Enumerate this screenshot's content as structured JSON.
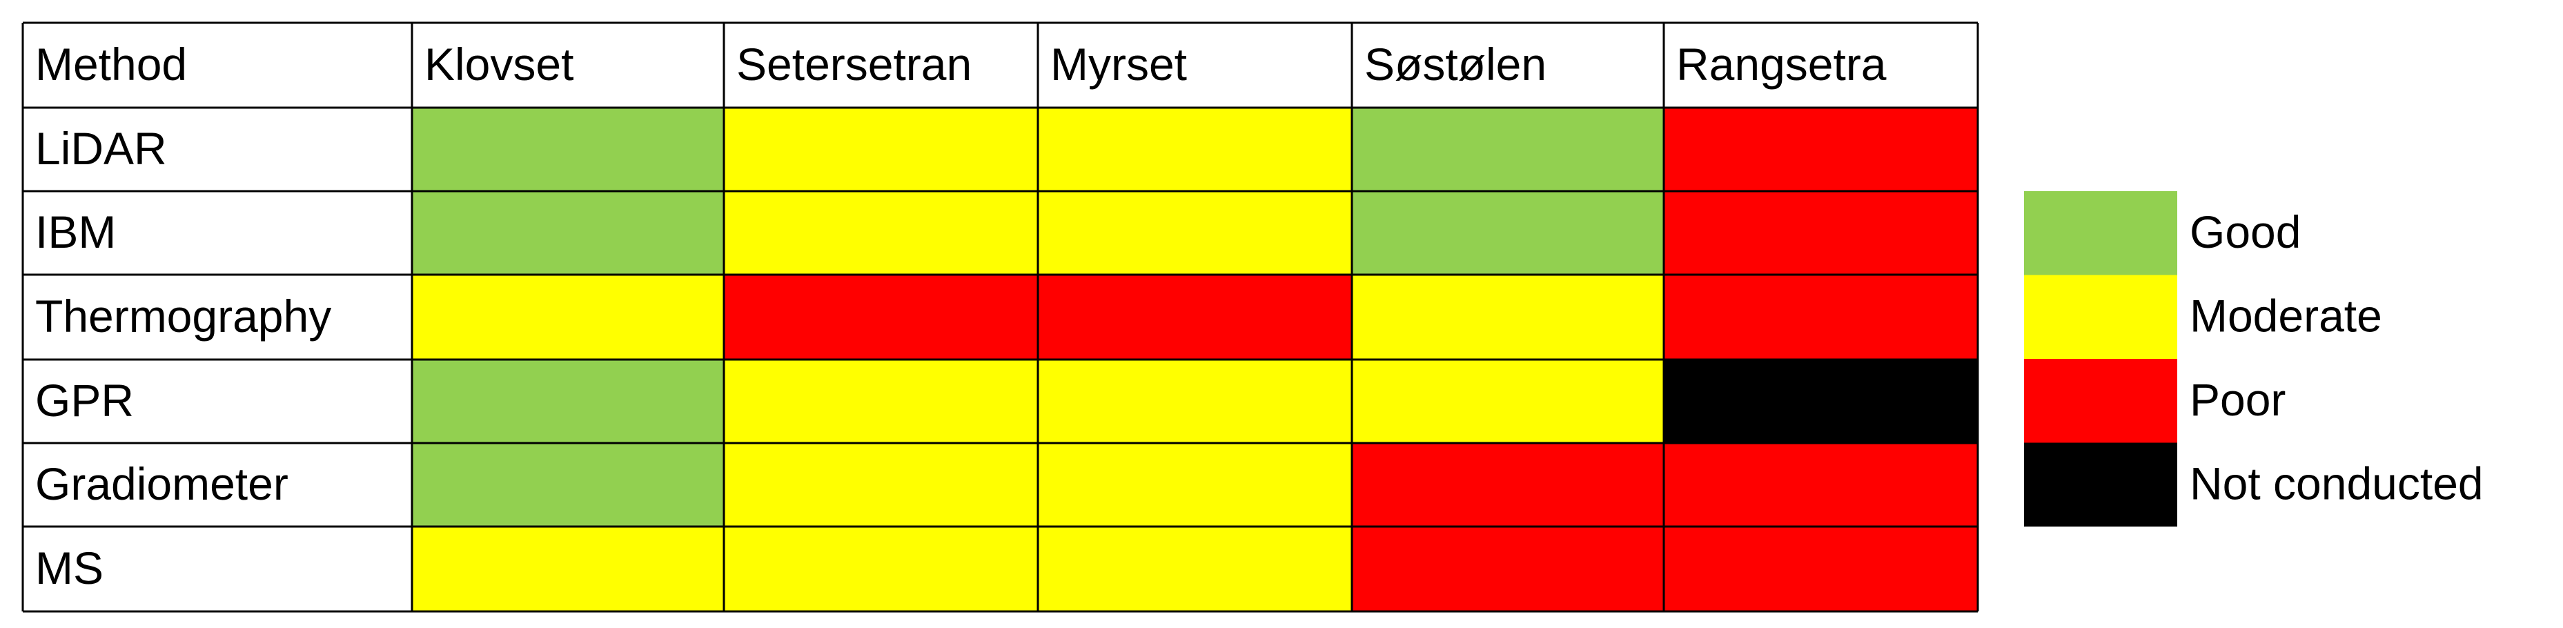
{
  "table": {
    "header": [
      "Method",
      "Klovset",
      "Setersetran",
      "Myrset",
      "Søstølen",
      "Rangsetra"
    ],
    "rows": [
      {
        "method": "LiDAR",
        "ratings": [
          "Good",
          "Moderate",
          "Moderate",
          "Good",
          "Poor"
        ]
      },
      {
        "method": "IBM",
        "ratings": [
          "Good",
          "Moderate",
          "Moderate",
          "Good",
          "Poor"
        ]
      },
      {
        "method": "Thermography",
        "ratings": [
          "Moderate",
          "Poor",
          "Poor",
          "Moderate",
          "Poor"
        ]
      },
      {
        "method": "GPR",
        "ratings": [
          "Good",
          "Moderate",
          "Moderate",
          "Moderate",
          "Not conducted"
        ]
      },
      {
        "method": "Gradiometer",
        "ratings": [
          "Good",
          "Moderate",
          "Moderate",
          "Poor",
          "Poor"
        ]
      },
      {
        "method": "MS",
        "ratings": [
          "Moderate",
          "Moderate",
          "Moderate",
          "Poor",
          "Poor"
        ]
      }
    ]
  },
  "legend": [
    {
      "name": "Good",
      "color": "#92d050"
    },
    {
      "name": "Moderate",
      "color": "#ffff00"
    },
    {
      "name": "Poor",
      "color": "#ff0000"
    },
    {
      "name": "Not conducted",
      "color": "#000000"
    }
  ]
}
